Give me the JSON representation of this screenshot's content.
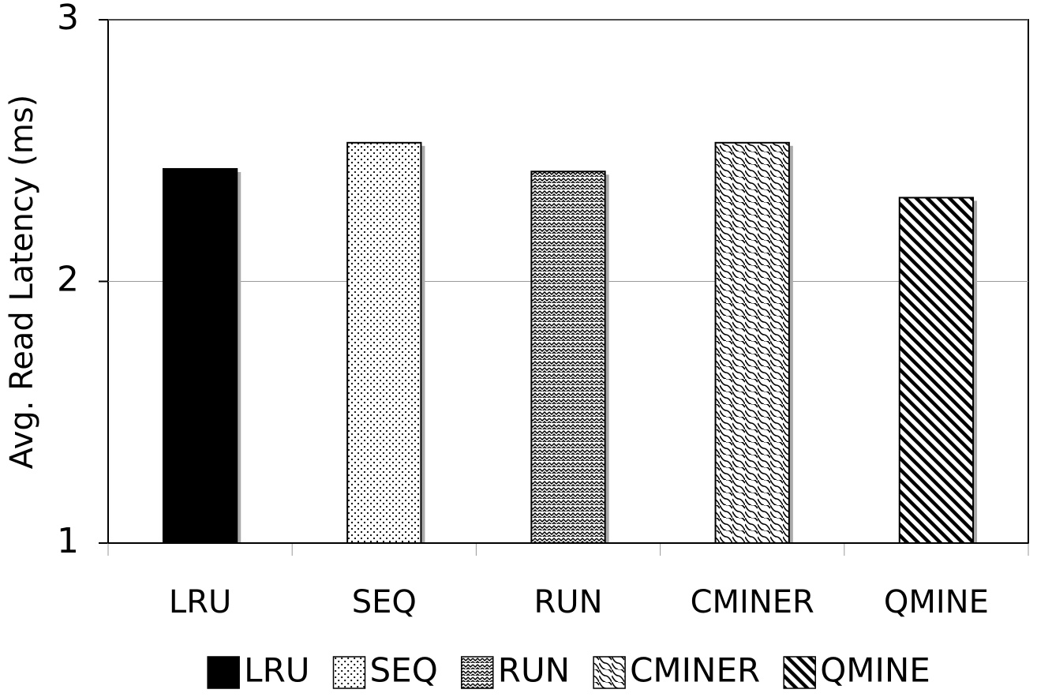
{
  "chart_data": {
    "type": "bar",
    "y_label": "Avg. Read Latency (ms)",
    "categories": [
      "LRU",
      "SEQ",
      "RUN",
      "CMINER",
      "QMINE"
    ],
    "series": [
      {
        "name": "LRU",
        "color": "#000000",
        "pattern": "solid",
        "values": [
          2.43,
          null,
          null,
          null,
          null
        ]
      },
      {
        "name": "SEQ",
        "color": "#000000",
        "pattern": "dots",
        "values": [
          null,
          2.53,
          null,
          null,
          null
        ]
      },
      {
        "name": "RUN",
        "color": "#000000",
        "pattern": "waves",
        "values": [
          null,
          null,
          2.42,
          null,
          null
        ]
      },
      {
        "name": "CMINER",
        "color": "#000000",
        "pattern": "scales",
        "values": [
          null,
          null,
          null,
          2.53,
          null
        ]
      },
      {
        "name": "QMINE",
        "color": "#000000",
        "pattern": "diagonal",
        "values": [
          null,
          null,
          null,
          null,
          2.32
        ]
      }
    ],
    "ylim": [
      1,
      3
    ],
    "yticks": [
      1,
      2,
      3
    ],
    "grid": true,
    "legend": "bottom"
  }
}
